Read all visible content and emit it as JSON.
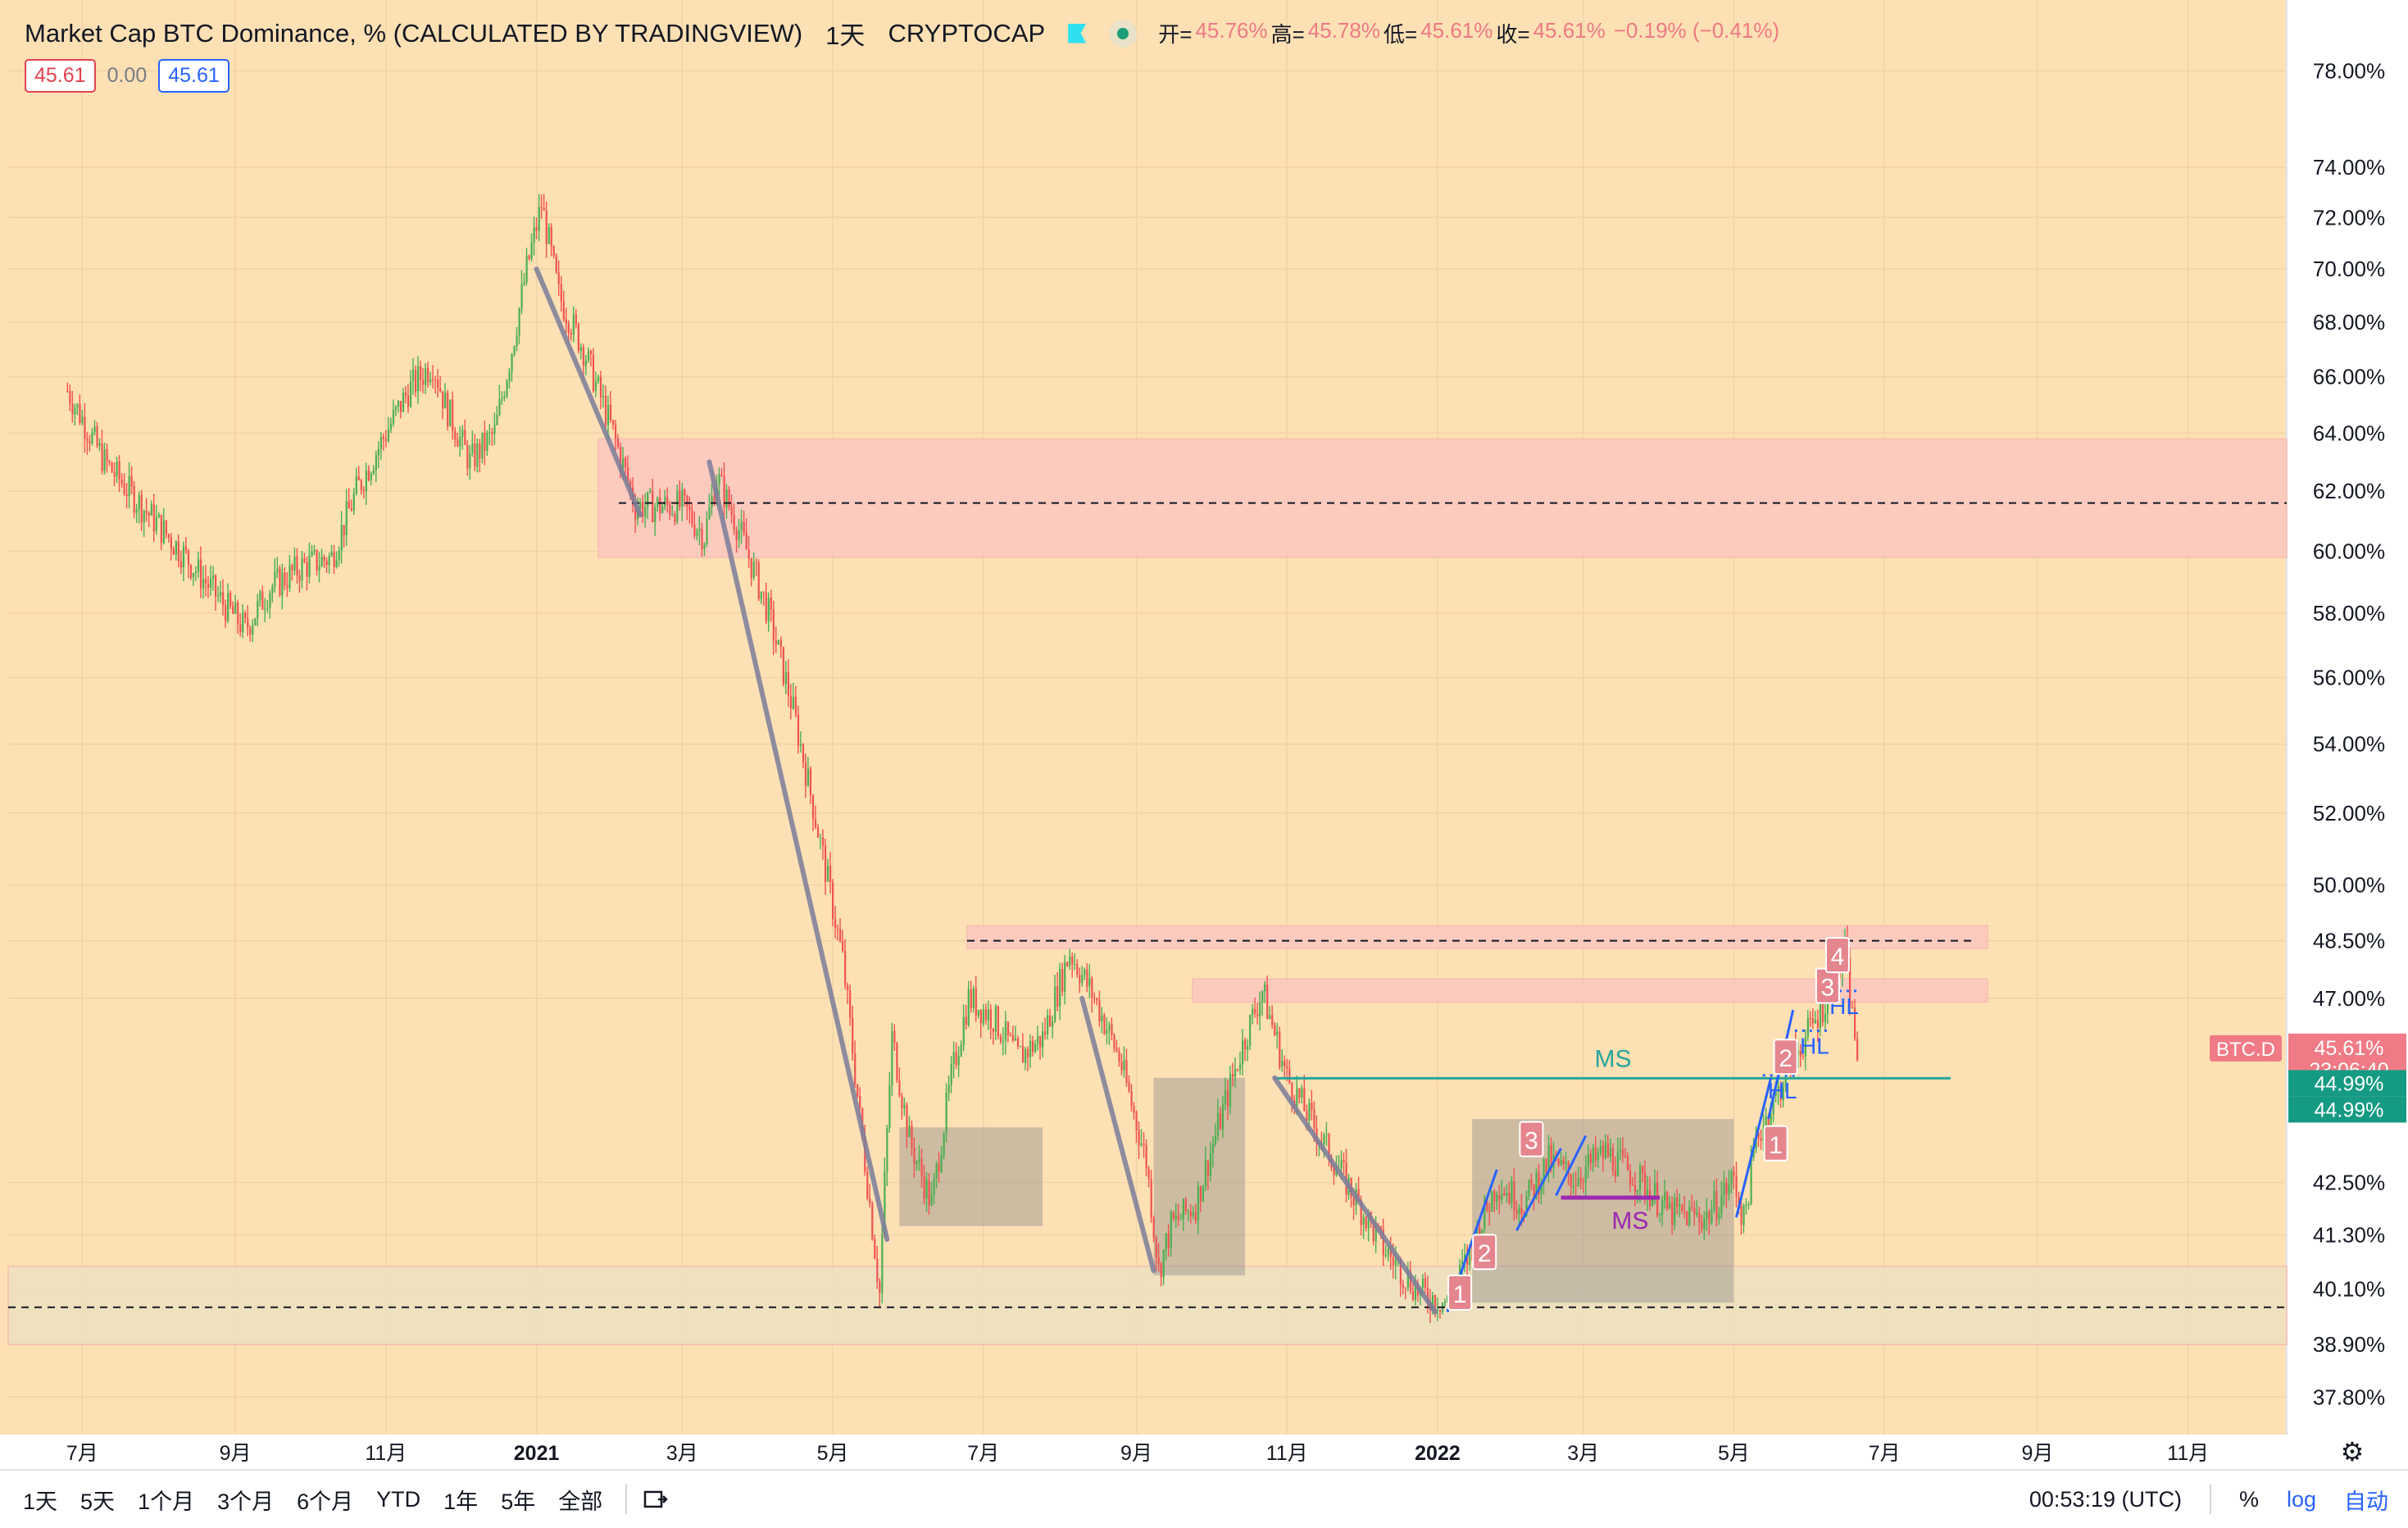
{
  "header": {
    "title": "Market Cap BTC Dominance, % (CALCULATED BY TRADINGVIEW)",
    "interval": "1天",
    "exchange": "CRYPTOCAP",
    "ohlc": {
      "open_label": "开=",
      "open": "45.76%",
      "high_label": "高=",
      "high": "45.78%",
      "low_label": "低=",
      "low": "45.61%",
      "close_label": "收=",
      "close": "45.61%",
      "change": "−0.19% (−0.41%)"
    },
    "sell_value": "45.61",
    "spread": "0.00",
    "buy_value": "45.61"
  },
  "colors": {
    "background": "#fde0b4",
    "up": "#4caf50",
    "down": "#ef5350",
    "accent_red": "#e0434f",
    "accent_blue": "#2962ff",
    "trend_line": "#7b7d9a",
    "ms_green": "#26a69a",
    "ms_purple": "#9c27b0"
  },
  "chart_data": {
    "type": "candlestick",
    "title": "Market Cap BTC Dominance, %",
    "x_axis_ticks": [
      "7月",
      "9月",
      "11月",
      "2021",
      "3月",
      "5月",
      "7月",
      "9月",
      "11月",
      "2022",
      "3月",
      "5月",
      "7月",
      "9月",
      "11月"
    ],
    "y_axis_ticks": [
      "78.00%",
      "74.00%",
      "72.00%",
      "70.00%",
      "68.00%",
      "66.00%",
      "64.00%",
      "62.00%",
      "60.00%",
      "58.00%",
      "56.00%",
      "54.00%",
      "52.00%",
      "50.00%",
      "48.50%",
      "47.00%",
      "42.50%",
      "41.30%",
      "40.10%",
      "38.90%",
      "37.80%"
    ],
    "y_scale": "log",
    "y_range": [
      37.2,
      80
    ],
    "grid": true,
    "price_path": [
      [
        "2020-06-25",
        65.5
      ],
      [
        "2020-07-10",
        63.0
      ],
      [
        "2020-07-25",
        61.5
      ],
      [
        "2020-08-10",
        60.0
      ],
      [
        "2020-08-25",
        58.5
      ],
      [
        "2020-09-05",
        57.5
      ],
      [
        "2020-09-15",
        58.8
      ],
      [
        "2020-09-28",
        59.5
      ],
      [
        "2020-10-10",
        59.8
      ],
      [
        "2020-10-20",
        62.0
      ],
      [
        "2020-11-01",
        64.0
      ],
      [
        "2020-11-10",
        65.5
      ],
      [
        "2020-11-20",
        66.5
      ],
      [
        "2020-11-25",
        65.0
      ],
      [
        "2020-12-05",
        63.0
      ],
      [
        "2020-12-15",
        64.0
      ],
      [
        "2020-12-22",
        67.0
      ],
      [
        "2020-12-28",
        70.0
      ],
      [
        "2021-01-03",
        72.5
      ],
      [
        "2021-01-10",
        69.0
      ],
      [
        "2021-01-20",
        67.0
      ],
      [
        "2021-02-01",
        64.0
      ],
      [
        "2021-02-10",
        61.5
      ],
      [
        "2021-02-20",
        61.5
      ],
      [
        "2021-03-01",
        61.5
      ],
      [
        "2021-03-10",
        60.5
      ],
      [
        "2021-03-15",
        62.5
      ],
      [
        "2021-03-25",
        60.5
      ],
      [
        "2021-04-05",
        58.0
      ],
      [
        "2021-04-15",
        55.0
      ],
      [
        "2021-04-25",
        51.5
      ],
      [
        "2021-05-05",
        48.0
      ],
      [
        "2021-05-12",
        44.0
      ],
      [
        "2021-05-18",
        41.0
      ],
      [
        "2021-05-20",
        40.0
      ],
      [
        "2021-05-22",
        42.5
      ],
      [
        "2021-05-25",
        46.0
      ],
      [
        "2021-06-01",
        43.5
      ],
      [
        "2021-06-10",
        42.0
      ],
      [
        "2021-06-18",
        45.0
      ],
      [
        "2021-06-25",
        47.0
      ],
      [
        "2021-07-05",
        46.5
      ],
      [
        "2021-07-15",
        45.5
      ],
      [
        "2021-07-25",
        46.0
      ],
      [
        "2021-08-05",
        48.2
      ],
      [
        "2021-08-15",
        47.0
      ],
      [
        "2021-08-25",
        45.5
      ],
      [
        "2021-09-05",
        43.0
      ],
      [
        "2021-09-10",
        40.5
      ],
      [
        "2021-09-15",
        41.5
      ],
      [
        "2021-09-25",
        42.0
      ],
      [
        "2021-10-05",
        44.0
      ],
      [
        "2021-10-15",
        46.0
      ],
      [
        "2021-10-22",
        47.2
      ],
      [
        "2021-11-01",
        45.0
      ],
      [
        "2021-11-15",
        43.5
      ],
      [
        "2021-11-25",
        42.5
      ],
      [
        "2021-12-10",
        41.0
      ],
      [
        "2021-12-25",
        40.0
      ],
      [
        "2022-01-05",
        39.8
      ],
      [
        "2022-01-15",
        41.0
      ],
      [
        "2022-01-25",
        42.5
      ],
      [
        "2022-02-05",
        42.0
      ],
      [
        "2022-02-15",
        43.0
      ],
      [
        "2022-02-25",
        42.6
      ],
      [
        "2022-03-10",
        43.2
      ],
      [
        "2022-03-25",
        42.5
      ],
      [
        "2022-04-05",
        41.8
      ],
      [
        "2022-04-20",
        41.7
      ],
      [
        "2022-05-01",
        42.6
      ],
      [
        "2022-05-05",
        41.6
      ],
      [
        "2022-05-10",
        43.5
      ],
      [
        "2022-05-20",
        44.8
      ],
      [
        "2022-05-25",
        45.5
      ],
      [
        "2022-06-01",
        46.2
      ],
      [
        "2022-06-10",
        47.3
      ],
      [
        "2022-06-15",
        48.2
      ],
      [
        "2022-06-18",
        46.5
      ],
      [
        "2022-06-20",
        45.61
      ]
    ],
    "annotations": [
      {
        "type": "hline",
        "label": "",
        "value": 61.6,
        "style": "dashed"
      },
      {
        "type": "hline",
        "label": "",
        "value": 39.7,
        "style": "dashed"
      },
      {
        "type": "hline",
        "label": "",
        "value": 48.5,
        "style": "dashed"
      },
      {
        "type": "hline",
        "label": "MS",
        "value": 44.99,
        "style": "solid",
        "color": "#26a69a"
      },
      {
        "type": "zone",
        "from": 59.8,
        "to": 63.8,
        "color": "#fcc8c0"
      },
      {
        "type": "zone",
        "from": 38.9,
        "to": 40.6,
        "color": "#ede1c0"
      },
      {
        "type": "zone",
        "from": 48.3,
        "to": 48.9,
        "color": "#fcc8c0"
      },
      {
        "type": "zone",
        "from": 46.9,
        "to": 47.5,
        "color": "#fcc8c0"
      }
    ],
    "wave_labels": [
      "1",
      "2",
      "3",
      "1",
      "2",
      "3",
      "4"
    ],
    "text_labels": [
      "MS",
      "MS",
      "HL",
      "HL",
      "HL"
    ],
    "current_price_label": "45.61%",
    "countdown": "23:06:40",
    "level_labels": [
      "44.99%",
      "44.99%"
    ],
    "symbol_tag": "BTC.D"
  },
  "bottom_bar": {
    "ranges": [
      "1天",
      "5天",
      "1个月",
      "3个月",
      "6个月",
      "YTD",
      "1年",
      "5年",
      "全部"
    ],
    "time": "00:53:19 (UTC)",
    "percent": "%",
    "log": "log",
    "auto": "自动"
  }
}
